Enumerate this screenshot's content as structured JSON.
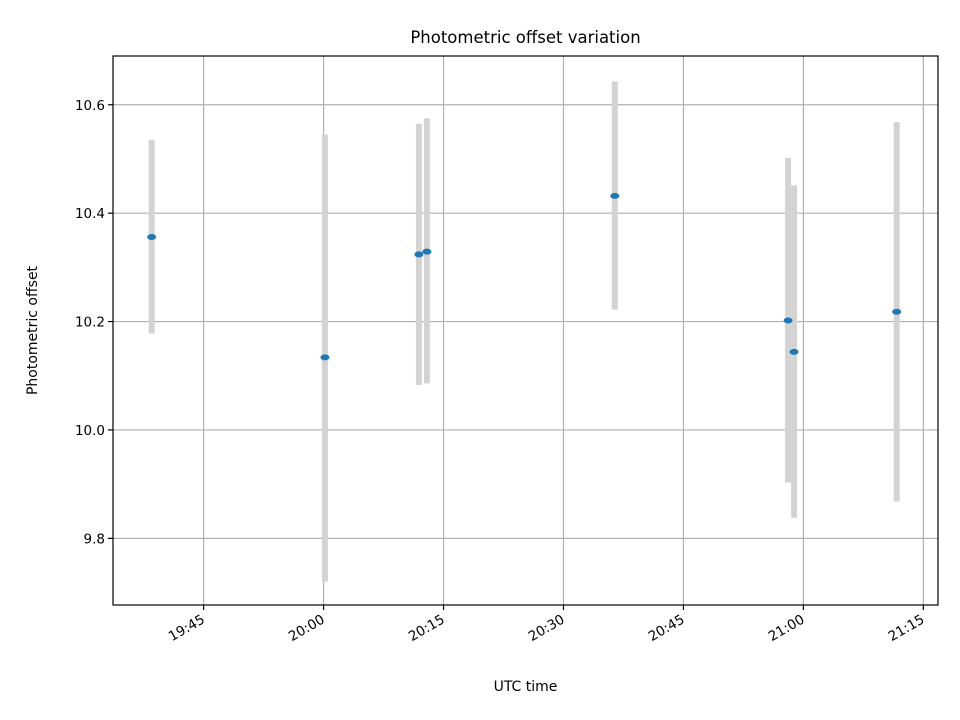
{
  "chart_data": {
    "type": "scatter",
    "title": "Photometric offset variation",
    "xlabel": "UTC time",
    "ylabel": "Photometric offset",
    "grid": true,
    "xlim": [
      "19:33:40",
      "21:16:50"
    ],
    "ylim": [
      9.677,
      10.69
    ],
    "x_ticks": [
      "19:45",
      "20:00",
      "20:15",
      "20:30",
      "20:45",
      "21:00",
      "21:15"
    ],
    "y_ticks": [
      "9.8",
      "10.0",
      "10.2",
      "10.4",
      "10.6"
    ],
    "colors": {
      "point": "#1f77b4",
      "errorbar": "#d3d3d3",
      "grid": "#b0b0b0"
    },
    "points": [
      {
        "time": "19:38:30",
        "y": 10.356,
        "y_low": 10.178,
        "y_high": 10.535
      },
      {
        "time": "20:00:10",
        "y": 10.134,
        "y_low": 9.72,
        "y_high": 10.545
      },
      {
        "time": "20:11:55",
        "y": 10.324,
        "y_low": 10.083,
        "y_high": 10.565
      },
      {
        "time": "20:12:55",
        "y": 10.329,
        "y_low": 10.086,
        "y_high": 10.575
      },
      {
        "time": "20:36:25",
        "y": 10.432,
        "y_low": 10.222,
        "y_high": 10.643
      },
      {
        "time": "20:58:05",
        "y": 10.202,
        "y_low": 9.903,
        "y_high": 10.502
      },
      {
        "time": "20:58:50",
        "y": 10.144,
        "y_low": 9.838,
        "y_high": 10.451
      },
      {
        "time": "21:11:40",
        "y": 10.218,
        "y_low": 9.868,
        "y_high": 10.568
      }
    ]
  }
}
